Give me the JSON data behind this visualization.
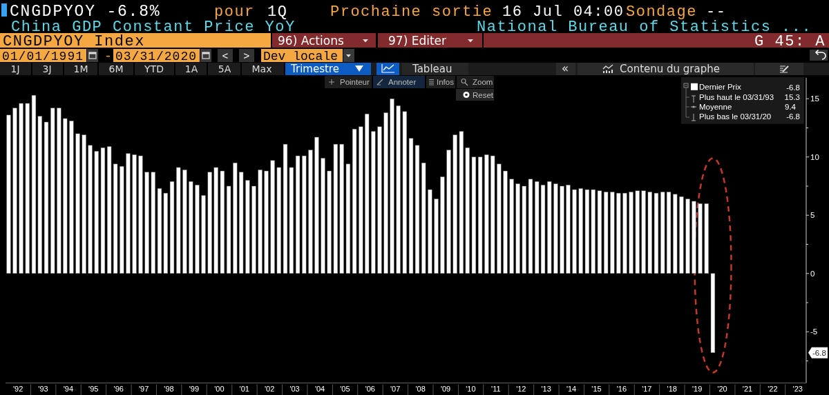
{
  "chart_data": {
    "type": "bar",
    "title": "CNGDPYOY -6.8%",
    "subtitle": "China GDP Constant Price YoY",
    "x": [
      "1992-02-15",
      "1992-05-15",
      "1992-08-15",
      "1992-11-15",
      "1993-02-15",
      "1993-05-15",
      "1993-08-15",
      "1993-11-15",
      "1994-02-15",
      "1994-05-15",
      "1994-08-15",
      "1994-11-15",
      "1995-02-15",
      "1995-05-15",
      "1995-08-15",
      "1995-11-15",
      "1996-02-15",
      "1996-05-15",
      "1996-08-15",
      "1996-11-15",
      "1997-02-15",
      "1997-05-15",
      "1997-08-15",
      "1997-11-15",
      "1998-02-15",
      "1998-05-15",
      "1998-08-15",
      "1998-11-15",
      "1999-02-15",
      "1999-05-15",
      "1999-08-15",
      "1999-11-15",
      "2000-02-15",
      "2000-05-15",
      "2000-08-15",
      "2000-11-15",
      "2001-02-15",
      "2001-05-15",
      "2001-08-15",
      "2001-11-15",
      "2002-02-15",
      "2002-05-15",
      "2002-08-15",
      "2002-11-15",
      "2003-02-15",
      "2003-05-15",
      "2003-08-15",
      "2003-11-15",
      "2004-02-15",
      "2004-05-15",
      "2004-08-15",
      "2004-11-15",
      "2005-02-15",
      "2005-05-15",
      "2005-08-15",
      "2005-11-15",
      "2006-02-15",
      "2006-05-15",
      "2006-08-15",
      "2006-11-15",
      "2007-02-15",
      "2007-05-15",
      "2007-08-15",
      "2007-11-15",
      "2008-02-15",
      "2008-05-15",
      "2008-08-15",
      "2008-11-15",
      "2009-02-15",
      "2009-05-15",
      "2009-08-15",
      "2009-11-15",
      "2010-02-15",
      "2010-05-15",
      "2010-08-15",
      "2010-11-15",
      "2011-02-15",
      "2011-05-15",
      "2011-08-15",
      "2011-11-15",
      "2012-02-15",
      "2012-05-15",
      "2012-08-15",
      "2012-11-15",
      "2013-02-15",
      "2013-05-15",
      "2013-08-15",
      "2013-11-15",
      "2014-02-15",
      "2014-05-15",
      "2014-08-15",
      "2014-11-15",
      "2015-02-15",
      "2015-05-15",
      "2015-08-15",
      "2015-11-15",
      "2016-02-15",
      "2016-05-15",
      "2016-08-15",
      "2016-11-15",
      "2017-02-15",
      "2017-05-15",
      "2017-08-15",
      "2017-11-15",
      "2018-02-15",
      "2018-05-15",
      "2018-08-15",
      "2018-11-15",
      "2019-02-15",
      "2019-05-15",
      "2019-08-15",
      "2019-11-15",
      "2020-02-15"
    ],
    "series": [
      {
        "name": "Dernier Prix",
        "color": "#ffffff",
        "values": [
          13.6,
          14.2,
          14.6,
          14.6,
          15.3,
          13.5,
          13.0,
          14.2,
          14.2,
          13.3,
          13.1,
          12.0,
          11.9,
          11.0,
          10.5,
          10.8,
          10.9,
          9.4,
          9.2,
          10.3,
          10.2,
          10.1,
          8.7,
          8.7,
          7.3,
          6.9,
          7.9,
          9.1,
          8.9,
          7.9,
          7.6,
          6.7,
          8.7,
          9.1,
          8.8,
          7.5,
          9.5,
          8.7,
          8.0,
          7.5,
          8.9,
          8.8,
          9.7,
          9.1,
          11.1,
          9.1,
          10.1,
          10.1,
          10.6,
          11.7,
          9.9,
          8.8,
          11.1,
          11.1,
          9.4,
          12.4,
          12.6,
          13.7,
          12.2,
          12.6,
          13.8,
          15.0,
          14.4,
          13.9,
          11.6,
          11.0,
          9.5,
          7.2,
          6.4,
          8.3,
          10.6,
          11.9,
          12.2,
          10.8,
          10.0,
          10.0,
          10.2,
          10.1,
          9.4,
          8.8,
          8.1,
          7.7,
          7.5,
          8.1,
          7.9,
          7.6,
          7.9,
          7.7,
          7.5,
          7.6,
          7.2,
          7.3,
          7.2,
          7.2,
          7.1,
          7.0,
          7.0,
          6.9,
          6.9,
          7.0,
          7.1,
          7.1,
          7.0,
          6.9,
          7.0,
          7.0,
          6.8,
          6.6,
          6.4,
          6.2,
          6.0,
          6.0,
          -6.8
        ]
      }
    ],
    "xlim": [
      "1992-01-01",
      "2023-11-01"
    ],
    "xticks": [
      {
        "value": "1992-07-01",
        "label": "'92"
      },
      {
        "value": "1993-01-01",
        "label": null
      },
      {
        "value": "1993-07-01",
        "label": "'93"
      },
      {
        "value": "1994-01-01",
        "label": null
      },
      {
        "value": "1994-07-01",
        "label": "'94"
      },
      {
        "value": "1995-01-01",
        "label": null
      },
      {
        "value": "1995-07-01",
        "label": "'95"
      },
      {
        "value": "1996-01-01",
        "label": null
      },
      {
        "value": "1996-07-01",
        "label": "'96"
      },
      {
        "value": "1997-01-01",
        "label": null
      },
      {
        "value": "1997-07-01",
        "label": "'97"
      },
      {
        "value": "1998-01-01",
        "label": null
      },
      {
        "value": "1998-07-01",
        "label": "'98"
      },
      {
        "value": "1999-01-01",
        "label": null
      },
      {
        "value": "1999-07-01",
        "label": "'99"
      },
      {
        "value": "2000-01-01",
        "label": null
      },
      {
        "value": "2000-07-01",
        "label": "'00"
      },
      {
        "value": "2001-01-01",
        "label": null
      },
      {
        "value": "2001-07-01",
        "label": "'01"
      },
      {
        "value": "2002-01-01",
        "label": null
      },
      {
        "value": "2002-07-01",
        "label": "'02"
      },
      {
        "value": "2003-01-01",
        "label": null
      },
      {
        "value": "2003-07-01",
        "label": "'03"
      },
      {
        "value": "2004-01-01",
        "label": null
      },
      {
        "value": "2004-07-01",
        "label": "'04"
      },
      {
        "value": "2005-01-01",
        "label": null
      },
      {
        "value": "2005-07-01",
        "label": "'05"
      },
      {
        "value": "2006-01-01",
        "label": null
      },
      {
        "value": "2006-07-01",
        "label": "'06"
      },
      {
        "value": "2007-01-01",
        "label": null
      },
      {
        "value": "2007-07-01",
        "label": "'07"
      },
      {
        "value": "2008-01-01",
        "label": null
      },
      {
        "value": "2008-07-01",
        "label": "'08"
      },
      {
        "value": "2009-01-01",
        "label": null
      },
      {
        "value": "2009-07-01",
        "label": "'09"
      },
      {
        "value": "2010-01-01",
        "label": null
      },
      {
        "value": "2010-07-01",
        "label": "'10"
      },
      {
        "value": "2011-01-01",
        "label": null
      },
      {
        "value": "2011-07-01",
        "label": "'11"
      },
      {
        "value": "2012-01-01",
        "label": null
      },
      {
        "value": "2012-07-01",
        "label": "'12"
      },
      {
        "value": "2013-01-01",
        "label": null
      },
      {
        "value": "2013-07-01",
        "label": "'13"
      },
      {
        "value": "2014-01-01",
        "label": null
      },
      {
        "value": "2014-07-01",
        "label": "'14"
      },
      {
        "value": "2015-01-01",
        "label": null
      },
      {
        "value": "2015-07-01",
        "label": "'15"
      },
      {
        "value": "2016-01-01",
        "label": null
      },
      {
        "value": "2016-07-01",
        "label": "'16"
      },
      {
        "value": "2017-01-01",
        "label": null
      },
      {
        "value": "2017-07-01",
        "label": "'17"
      },
      {
        "value": "2018-01-01",
        "label": null
      },
      {
        "value": "2018-07-01",
        "label": "'18"
      },
      {
        "value": "2019-01-01",
        "label": null
      },
      {
        "value": "2019-07-01",
        "label": "'19"
      },
      {
        "value": "2020-01-01",
        "label": null
      },
      {
        "value": "2020-07-01",
        "label": "'20"
      },
      {
        "value": "2021-01-01",
        "label": null
      },
      {
        "value": "2021-07-01",
        "label": "'21"
      },
      {
        "value": "2022-01-01",
        "label": null
      },
      {
        "value": "2022-07-01",
        "label": "'22"
      },
      {
        "value": "2023-01-01",
        "label": null
      },
      {
        "value": "2023-07-01",
        "label": "'23"
      }
    ],
    "ylim": [
      -9.4,
      16.8
    ],
    "yticks": [
      -5,
      {
        "value": -7.5,
        "label": null
      },
      {
        "value": -2.5,
        "label": null
      },
      0,
      {
        "value": 2.5,
        "label": null
      },
      5,
      {
        "value": 7.5,
        "label": null
      },
      10,
      {
        "value": 12.5,
        "label": null
      },
      15
    ],
    "legend": "top right",
    "annotations": [
      "pour",
      "1Q",
      "Prochaine sortie",
      "16 Jul 04:00",
      "Sondage",
      "--",
      "National Bureau of Statistics ...",
      "CNGDPYOY Index",
      "96) Actions",
      "97) Editer",
      "G 45: A",
      "01/01/1991",
      "-",
      "03/31/2020",
      "<",
      ">",
      "Dev locale",
      "1J",
      "3J",
      "1M",
      "6M",
      "YTD",
      "1A",
      "5A",
      "Max",
      "Trimestre",
      "Tableau",
      "«",
      "Contenu du graphe",
      "Pointeur",
      "Annoter",
      "Infos",
      "Zoom",
      "Reset",
      "Plus haut le 03/31/93",
      "15.3",
      "Moyenne",
      "9.4",
      "Plus bas le 03/31/20",
      "-6.8",
      "-6.8",
      {
        "text": "-6.8",
        "y": -6.8
      }
    ]
  }
}
